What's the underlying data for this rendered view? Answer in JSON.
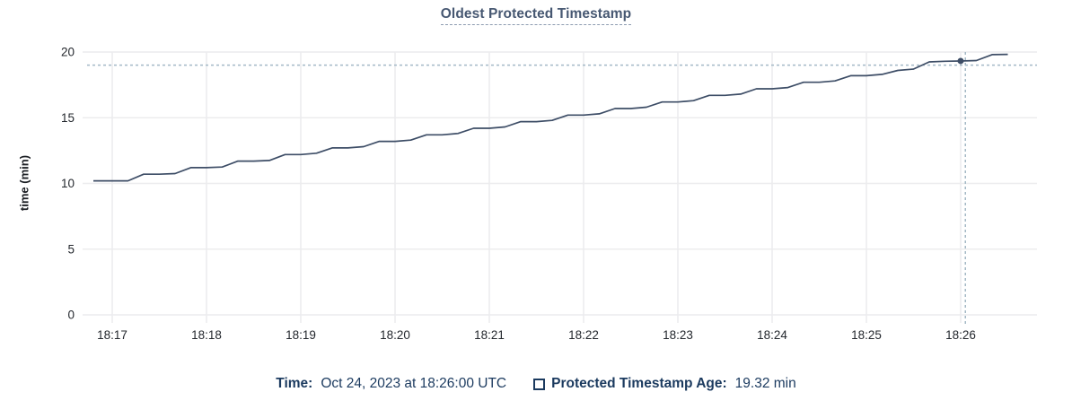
{
  "title": "Oldest Protected Timestamp",
  "y_axis_label": "time (min)",
  "legend": {
    "time_label": "Time:",
    "time_value": "Oct 24, 2023 at 18:26:00 UTC",
    "series_label": "Protected Timestamp Age:",
    "series_value": "19.32 min"
  },
  "colors": {
    "background": "#ffffff",
    "title": "#475872",
    "line": "#3d4d66",
    "grid": "#ececee",
    "tick_text": "#24282e",
    "crosshair": "#a4b9c6",
    "legend_text": "#1b3a5f"
  },
  "chart_data": {
    "type": "line",
    "title": "Oldest Protected Timestamp",
    "xlabel": "",
    "ylabel": "time (min)",
    "ylim": [
      0,
      20
    ],
    "y_ticks": [
      0,
      5,
      10,
      15,
      20
    ],
    "x_ticks": [
      "18:17",
      "18:18",
      "18:19",
      "18:20",
      "18:21",
      "18:22",
      "18:23",
      "18:24",
      "18:25",
      "18:26"
    ],
    "x_range": [
      "18:16:41",
      "18:26:49"
    ],
    "grid": true,
    "legend_position": "bottom",
    "series": [
      {
        "name": "Protected Timestamp Age",
        "unit": "min",
        "points": [
          [
            "18:16:48",
            10.2
          ],
          [
            "18:17:00",
            10.2
          ],
          [
            "18:17:10",
            10.2
          ],
          [
            "18:17:20",
            10.7
          ],
          [
            "18:17:30",
            10.7
          ],
          [
            "18:17:40",
            10.75
          ],
          [
            "18:17:50",
            11.2
          ],
          [
            "18:18:00",
            11.2
          ],
          [
            "18:18:10",
            11.25
          ],
          [
            "18:18:20",
            11.7
          ],
          [
            "18:18:30",
            11.7
          ],
          [
            "18:18:40",
            11.75
          ],
          [
            "18:18:50",
            12.2
          ],
          [
            "18:19:00",
            12.2
          ],
          [
            "18:19:10",
            12.3
          ],
          [
            "18:19:20",
            12.7
          ],
          [
            "18:19:30",
            12.7
          ],
          [
            "18:19:40",
            12.8
          ],
          [
            "18:19:50",
            13.2
          ],
          [
            "18:20:00",
            13.2
          ],
          [
            "18:20:10",
            13.3
          ],
          [
            "18:20:20",
            13.7
          ],
          [
            "18:20:30",
            13.7
          ],
          [
            "18:20:40",
            13.8
          ],
          [
            "18:20:50",
            14.2
          ],
          [
            "18:21:00",
            14.2
          ],
          [
            "18:21:10",
            14.3
          ],
          [
            "18:21:20",
            14.7
          ],
          [
            "18:21:30",
            14.7
          ],
          [
            "18:21:40",
            14.8
          ],
          [
            "18:21:50",
            15.2
          ],
          [
            "18:22:00",
            15.2
          ],
          [
            "18:22:10",
            15.3
          ],
          [
            "18:22:20",
            15.7
          ],
          [
            "18:22:30",
            15.7
          ],
          [
            "18:22:40",
            15.8
          ],
          [
            "18:22:50",
            16.2
          ],
          [
            "18:23:00",
            16.2
          ],
          [
            "18:23:10",
            16.3
          ],
          [
            "18:23:20",
            16.7
          ],
          [
            "18:23:30",
            16.7
          ],
          [
            "18:23:40",
            16.8
          ],
          [
            "18:23:50",
            17.2
          ],
          [
            "18:24:00",
            17.2
          ],
          [
            "18:24:10",
            17.3
          ],
          [
            "18:24:20",
            17.7
          ],
          [
            "18:24:30",
            17.7
          ],
          [
            "18:24:40",
            17.8
          ],
          [
            "18:24:50",
            18.2
          ],
          [
            "18:25:00",
            18.2
          ],
          [
            "18:25:10",
            18.3
          ],
          [
            "18:25:20",
            18.6
          ],
          [
            "18:25:30",
            18.7
          ],
          [
            "18:25:40",
            19.25
          ],
          [
            "18:25:50",
            19.3
          ],
          [
            "18:26:00",
            19.32
          ],
          [
            "18:26:10",
            19.35
          ],
          [
            "18:26:20",
            19.8
          ],
          [
            "18:26:30",
            19.82
          ]
        ]
      }
    ],
    "hover": {
      "time": "18:26:00",
      "value": 19.32,
      "crosshair_time": "18:26:03",
      "crosshair_value": 19.0
    }
  }
}
